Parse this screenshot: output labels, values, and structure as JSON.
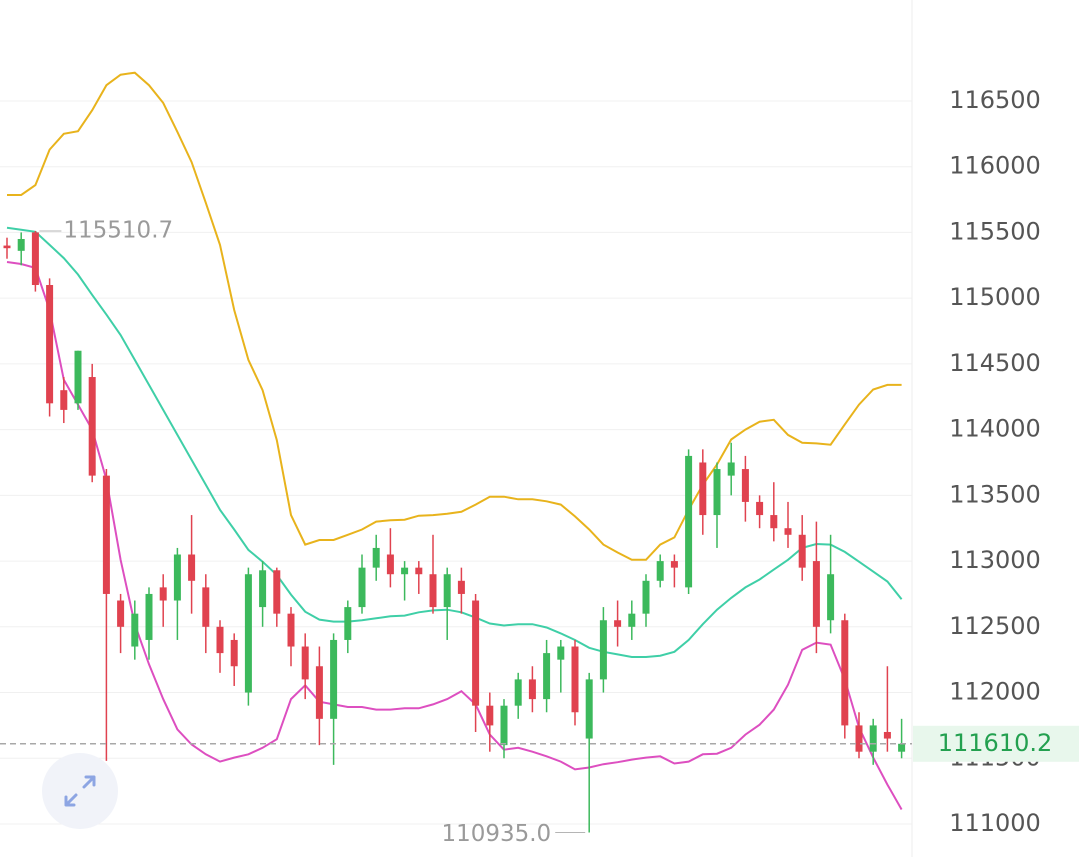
{
  "chart_data": {
    "type": "candlestick",
    "open": [
      115400,
      115360,
      115500,
      115100,
      114300,
      114200,
      114400,
      113650,
      112700,
      112350,
      112400,
      112800,
      112700,
      113050,
      112800,
      112500,
      112400,
      112000,
      112650,
      112930,
      112600,
      112350,
      112200,
      111800,
      112400,
      112650,
      112950,
      113050,
      112900,
      112950,
      112900,
      112650,
      112850,
      112700,
      111900,
      111600,
      111900,
      112100,
      111950,
      112250,
      112350,
      111650,
      112100,
      112550,
      112500,
      112600,
      112850,
      113000,
      112800,
      113750,
      113350,
      113650,
      113700,
      113450,
      113350,
      113250,
      113200,
      113000,
      112550,
      112550,
      111750,
      111550,
      111700,
      111550
    ],
    "high": [
      115460,
      115500,
      115510.7,
      115150,
      114400,
      114600,
      114500,
      113700,
      112750,
      112700,
      112800,
      112900,
      113100,
      113350,
      112900,
      112550,
      112450,
      112950,
      113000,
      112950,
      112650,
      112450,
      112350,
      112450,
      112700,
      113050,
      113200,
      113250,
      113000,
      113000,
      113200,
      112950,
      112950,
      112750,
      112000,
      111950,
      112150,
      112200,
      112400,
      112400,
      112400,
      112150,
      112650,
      112700,
      112700,
      112900,
      113050,
      113050,
      113850,
      113850,
      113750,
      113900,
      113800,
      113500,
      113600,
      113450,
      113350,
      113300,
      113200,
      112600,
      111850,
      111800,
      112200,
      111800
    ],
    "low": [
      115300,
      115250,
      115050,
      114100,
      114050,
      114150,
      113600,
      111480,
      112300,
      112250,
      112250,
      112500,
      112400,
      112600,
      112300,
      112150,
      112050,
      111900,
      112500,
      112500,
      112200,
      111950,
      111600,
      111450,
      112300,
      112600,
      112850,
      112800,
      112700,
      112750,
      112600,
      112400,
      112600,
      111700,
      111550,
      111500,
      111800,
      111850,
      111850,
      112000,
      111750,
      110935,
      112000,
      112350,
      112400,
      112500,
      112800,
      112800,
      112750,
      113200,
      113100,
      113500,
      113300,
      113250,
      113150,
      113100,
      112850,
      112300,
      112450,
      111650,
      111500,
      111450,
      111550,
      111500
    ],
    "close": [
      115380,
      115450,
      115100,
      114200,
      114150,
      114600,
      113650,
      112750,
      112500,
      112600,
      112750,
      112700,
      113050,
      112850,
      112500,
      112300,
      112200,
      112900,
      112930,
      112600,
      112350,
      112100,
      111800,
      112400,
      112650,
      112950,
      113100,
      112900,
      112950,
      112900,
      112650,
      112900,
      112750,
      111900,
      111750,
      111900,
      112100,
      111950,
      112300,
      112350,
      111850,
      112100,
      112550,
      112500,
      112600,
      112850,
      113000,
      112950,
      113800,
      113350,
      113700,
      113750,
      113450,
      113350,
      113250,
      113200,
      112950,
      112500,
      112900,
      111750,
      111550,
      111750,
      111650,
      111610.2
    ],
    "up_color": "#3cb95c",
    "down_color": "#e0424f",
    "series": [
      {
        "color": "#e8b31c",
        "values": [
          115785,
          115785,
          115860,
          116130,
          116250,
          116270,
          116430,
          116620,
          116700,
          116715,
          116620,
          116485,
          116265,
          116035,
          115725,
          115405,
          114910,
          114530,
          114300,
          113920,
          113350,
          113125,
          113160,
          113160,
          113200,
          113240,
          113300,
          113310,
          113315,
          113345,
          113350,
          113360,
          113375,
          113430,
          113490,
          113490,
          113470,
          113470,
          113455,
          113430,
          113340,
          113240,
          113125,
          113065,
          113010,
          113010,
          113125,
          113180,
          113390,
          113580,
          113735,
          113925,
          114000,
          114060,
          114075,
          113960,
          113900,
          113895,
          113885,
          114040,
          114190,
          114305,
          114340,
          114340
        ]
      },
      {
        "color": "#3fcfa7",
        "values": [
          115535,
          115520,
          115505,
          115405,
          115305,
          115180,
          115025,
          114875,
          114720,
          114530,
          114340,
          114150,
          113960,
          113770,
          113580,
          113390,
          113240,
          113085,
          112995,
          112895,
          112745,
          112615,
          112555,
          112540,
          112540,
          112550,
          112565,
          112580,
          112585,
          112610,
          112625,
          112630,
          112610,
          112570,
          112525,
          112510,
          112520,
          112520,
          112495,
          112450,
          112400,
          112340,
          112310,
          112290,
          112270,
          112270,
          112280,
          112310,
          112400,
          112520,
          112630,
          112720,
          112800,
          112860,
          112935,
          113010,
          113100,
          113130,
          113125,
          113070,
          112995,
          112920,
          112845,
          112710
        ]
      },
      {
        "color": "#dd4fc0",
        "values": [
          115275,
          115260,
          115230,
          114910,
          114380,
          114190,
          114000,
          113620,
          113010,
          112520,
          112215,
          111950,
          111720,
          111605,
          111530,
          111475,
          111505,
          111530,
          111580,
          111645,
          111950,
          112055,
          111930,
          111910,
          111890,
          111890,
          111870,
          111870,
          111880,
          111880,
          111910,
          111950,
          112010,
          111910,
          111680,
          111565,
          111580,
          111550,
          111515,
          111475,
          111415,
          111430,
          111455,
          111470,
          111490,
          111505,
          111515,
          111460,
          111475,
          111530,
          111535,
          111580,
          111680,
          111755,
          111870,
          112060,
          112325,
          112380,
          112365,
          112100,
          111735,
          111505,
          111300,
          111110
        ]
      }
    ],
    "ylim": [
      110749,
      117268
    ],
    "yticks": [
      111000,
      111500,
      112000,
      112500,
      113000,
      113500,
      114000,
      114500,
      115000,
      115500,
      116000,
      116500
    ],
    "grid": true,
    "high_annotation": 115510.7,
    "low_annotation": {
      "value": 110935,
      "label": "110935.0"
    },
    "last_price": 111610.2
  }
}
